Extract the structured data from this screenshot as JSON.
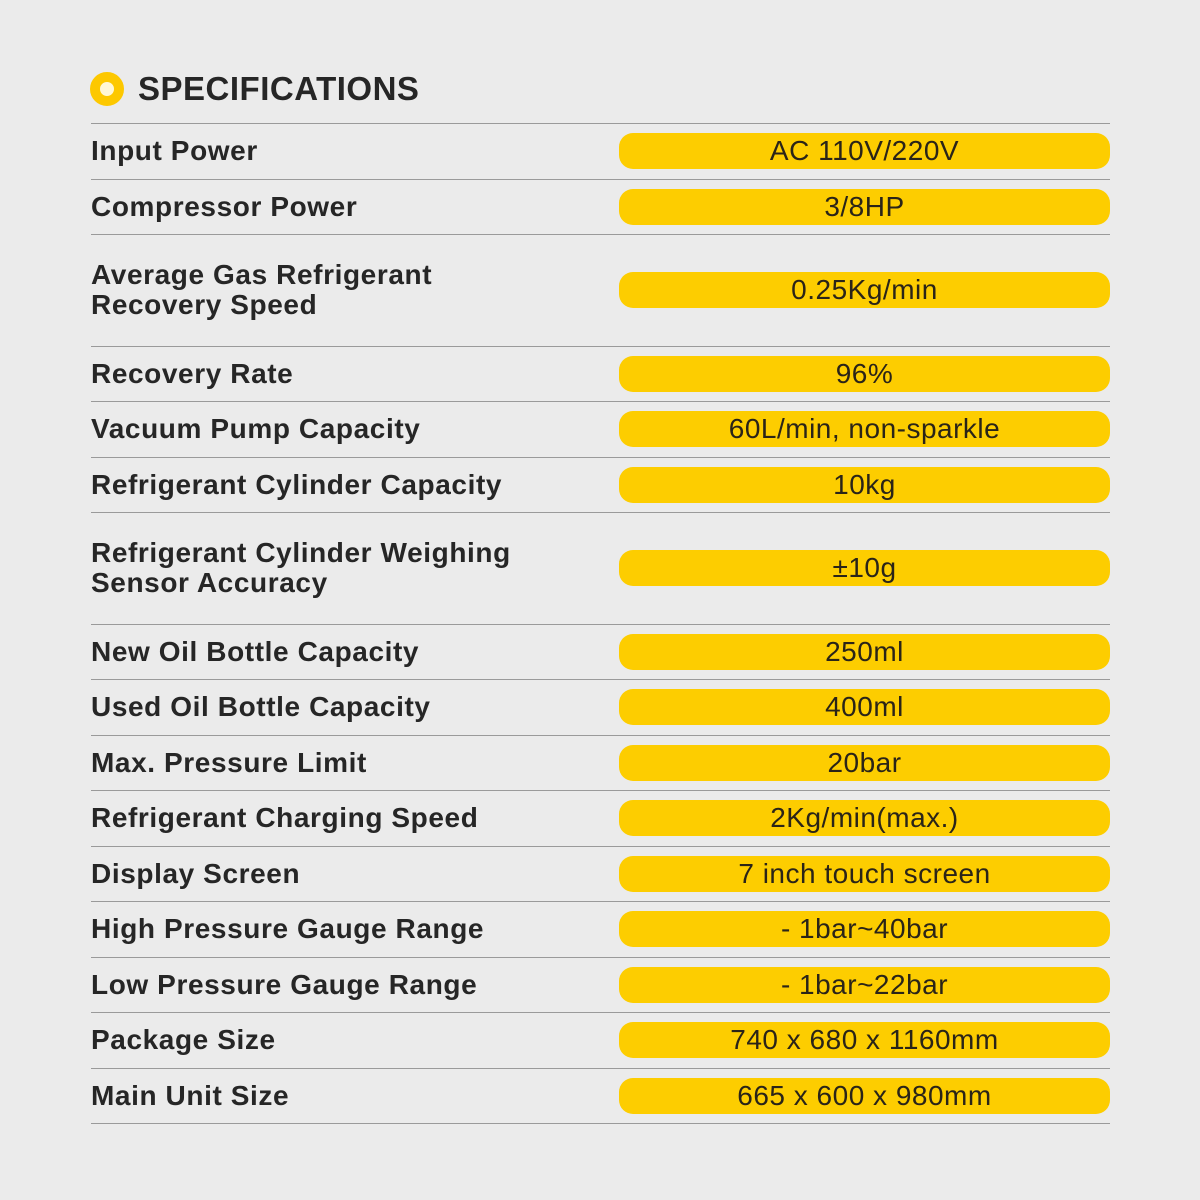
{
  "title": "SPECIFICATIONS",
  "accent_color": "#fdcd00",
  "header_icon": "circle-ring-icon",
  "specs": [
    {
      "label": [
        "Input Power"
      ],
      "value": "AC 110V/220V"
    },
    {
      "label": [
        "Compressor Power"
      ],
      "value": "3/8HP"
    },
    {
      "label": [
        "Average Gas Refrigerant",
        "Recovery Speed"
      ],
      "value": "0.25Kg/min"
    },
    {
      "label": [
        "Recovery Rate"
      ],
      "value": "96%"
    },
    {
      "label": [
        "Vacuum Pump Capacity"
      ],
      "value": "60L/min, non-sparkle"
    },
    {
      "label": [
        "Refrigerant Cylinder Capacity"
      ],
      "value": "10kg"
    },
    {
      "label": [
        "Refrigerant Cylinder Weighing",
        "Sensor Accuracy"
      ],
      "value": "±10g"
    },
    {
      "label": [
        "New Oil Bottle Capacity"
      ],
      "value": "250ml"
    },
    {
      "label": [
        "Used Oil Bottle Capacity"
      ],
      "value": "400ml"
    },
    {
      "label": [
        "Max. Pressure Limit"
      ],
      "value": "20bar"
    },
    {
      "label": [
        "Refrigerant Charging Speed"
      ],
      "value": "2Kg/min(max.)"
    },
    {
      "label": [
        "Display Screen"
      ],
      "value": "7 inch touch screen"
    },
    {
      "label": [
        "High Pressure Gauge Range"
      ],
      "value": "- 1bar~40bar"
    },
    {
      "label": [
        "Low Pressure Gauge Range"
      ],
      "value": "- 1bar~22bar"
    },
    {
      "label": [
        "Package Size"
      ],
      "value": "740 x 680 x 1160mm"
    },
    {
      "label": [
        "Main Unit Size"
      ],
      "value": "665 x 600 x 980mm"
    }
  ]
}
